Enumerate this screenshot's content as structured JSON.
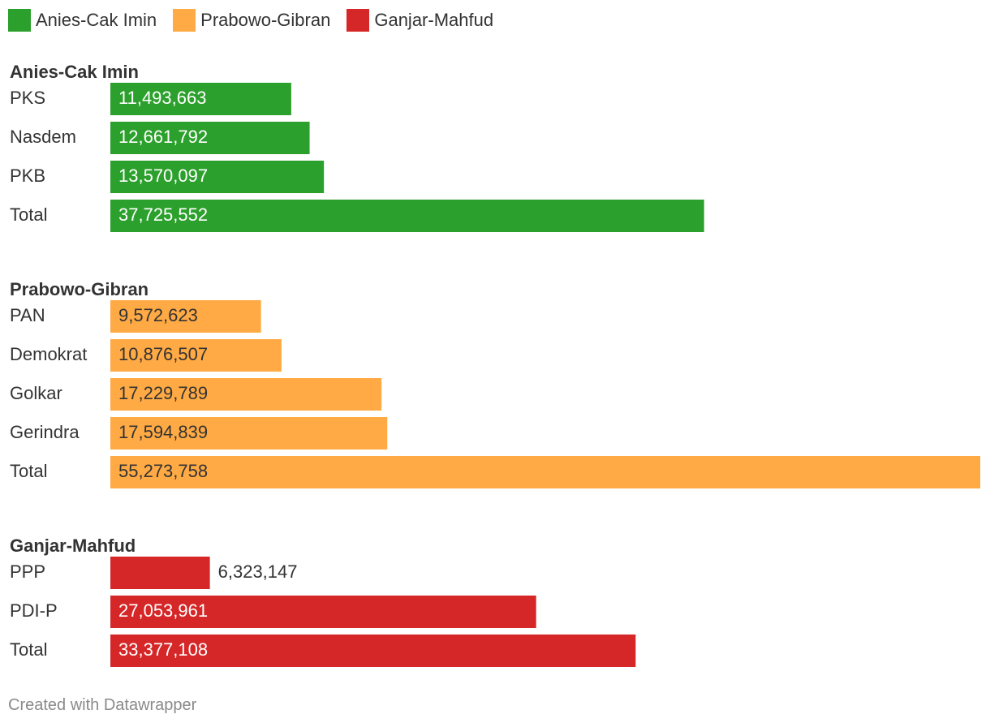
{
  "legend": [
    {
      "label": "Anies-Cak Imin",
      "color": "#2ca02c"
    },
    {
      "label": "Prabowo-Gibran",
      "color": "#ffaa44"
    },
    {
      "label": "Ganjar-Mahfud",
      "color": "#d62728"
    }
  ],
  "footer": "Created with Datawrapper",
  "chart_data": {
    "type": "bar",
    "orientation": "horizontal",
    "xlim": [
      0,
      55273758
    ],
    "grid": false,
    "legend_position": "top-left",
    "groups": [
      {
        "name": "Anies-Cak Imin",
        "color": "#2ca02c",
        "label_color": "#ffffff",
        "categories": [
          "PKS",
          "Nasdem",
          "PKB",
          "Total"
        ],
        "values": [
          11493663,
          12661792,
          13570097,
          37725552
        ],
        "labels": [
          "11,493,663",
          "12,661,792",
          "13,570,097",
          "37,725,552"
        ]
      },
      {
        "name": "Prabowo-Gibran",
        "color": "#ffaa44",
        "label_color": "#333333",
        "categories": [
          "PAN",
          "Demokrat",
          "Golkar",
          "Gerindra",
          "Total"
        ],
        "values": [
          9572623,
          10876507,
          17229789,
          17594839,
          55273758
        ],
        "labels": [
          "9,572,623",
          "10,876,507",
          "17,229,789",
          "17,594,839",
          "55,273,758"
        ]
      },
      {
        "name": "Ganjar-Mahfud",
        "color": "#d62728",
        "label_color": "#ffffff",
        "categories": [
          "PPP",
          "PDI-P",
          "Total"
        ],
        "values": [
          6323147,
          27053961,
          33377108
        ],
        "labels": [
          "6,323,147",
          "27,053,961",
          "33,377,108"
        ]
      }
    ]
  }
}
